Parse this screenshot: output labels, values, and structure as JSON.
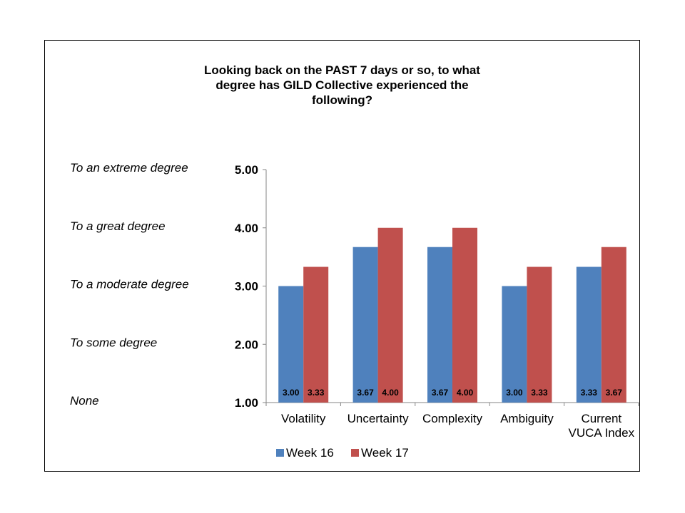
{
  "chart_data": {
    "type": "bar",
    "title_lines": [
      "Looking back on the PAST 7 days or so, to what",
      "degree has GILD Collective experienced the",
      "following?"
    ],
    "categories": [
      [
        "Volatility"
      ],
      [
        "Uncertainty"
      ],
      [
        "Complexity"
      ],
      [
        "Ambiguity"
      ],
      [
        "Current",
        "VUCA Index"
      ]
    ],
    "series": [
      {
        "name": "Week 16",
        "color": "#4F81BD",
        "values": [
          3.0,
          3.67,
          3.67,
          3.0,
          3.33
        ],
        "labels": [
          "3.00",
          "3.67",
          "3.67",
          "3.00",
          "3.33"
        ]
      },
      {
        "name": "Week 17",
        "color": "#C0504D",
        "values": [
          3.33,
          4.0,
          4.0,
          3.33,
          3.67
        ],
        "labels": [
          "3.33",
          "4.00",
          "4.00",
          "3.33",
          "3.67"
        ]
      }
    ],
    "ylim": [
      1,
      5
    ],
    "yticks": [
      1,
      2,
      3,
      4,
      5
    ],
    "ytick_labels": [
      "1.00",
      "2.00",
      "3.00",
      "4.00",
      "5.00"
    ],
    "scale_labels": [
      {
        "value": 5,
        "text": "To an extreme degree"
      },
      {
        "value": 4,
        "text": "To a great degree"
      },
      {
        "value": 3,
        "text": "To a moderate degree"
      },
      {
        "value": 2,
        "text": "To some degree"
      },
      {
        "value": 1,
        "text": "None"
      }
    ],
    "legend_position": "bottom",
    "grid": false
  }
}
